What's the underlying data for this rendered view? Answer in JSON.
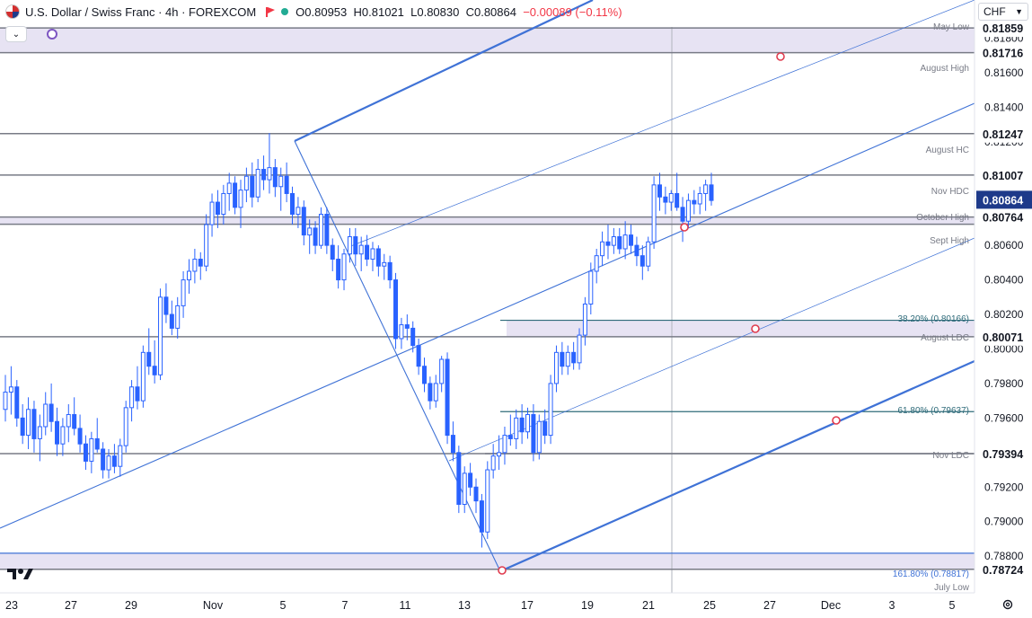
{
  "header": {
    "symbol": "U.S. Dollar / Swiss Franc · 4h · FOREXCOM",
    "ohlc": {
      "o": "O0.80953",
      "h": "H0.81021",
      "l": "L0.80830",
      "c": "C0.80864",
      "change": "−0.00089 (−0.11%)"
    },
    "currency": "CHF",
    "colors": {
      "up": "#22ab94",
      "down": "#f23645"
    }
  },
  "icons": [
    "flag-icon",
    "status-dot-icon",
    "chevron-down-icon",
    "tradingview-logo-icon",
    "settings-icon"
  ],
  "colors": {
    "candle": "#2962ff",
    "level_line": "#787b86",
    "zone_fill": "#e7e3f3",
    "fib_line": "#2f6b7a",
    "channel": "#3f72d6",
    "marker": "#e03c4f",
    "last_price": "#1e3a8a"
  },
  "chart_data": {
    "type": "candlestick",
    "title": "U.S. Dollar / Swiss Franc · 4h · FOREXCOM",
    "ylim": [
      0.7865,
      0.82
    ],
    "y_ticks": [
      "0.81800",
      "0.81600",
      "0.81400",
      "0.81200",
      "0.81000",
      "0.80800",
      "0.80600",
      "0.80400",
      "0.80200",
      "0.80000",
      "0.79800",
      "0.79600",
      "0.79400",
      "0.79200",
      "0.79000",
      "0.78800"
    ],
    "x_ticks": [
      "23",
      "27",
      "29",
      "Nov",
      "5",
      "7",
      "11",
      "13",
      "17",
      "19",
      "21",
      "25",
      "27",
      "Dec",
      "3",
      "5"
    ],
    "levels": [
      {
        "label": "May Low",
        "value": "0.81859"
      },
      {
        "label": "August High",
        "value": "0.81716"
      },
      {
        "label": "August HC",
        "value": "0.81247"
      },
      {
        "label": "Nov HDC",
        "value": "0.81007"
      },
      {
        "label": "October High",
        "value": "0.80764"
      },
      {
        "label": "Sept High",
        "value": "0.80722"
      },
      {
        "label": "August LDC",
        "value": "0.80071"
      },
      {
        "label": "Nov LDC",
        "value": "0.79394"
      },
      {
        "label": "July Low",
        "value": "0.78724"
      }
    ],
    "fib_levels": [
      {
        "label": "38.20% (0.80166)",
        "value": 0.80166
      },
      {
        "label": "61.80% (0.79637)",
        "value": 0.79637
      },
      {
        "label": "161.80% (0.78817)",
        "value": 0.78817
      }
    ],
    "last_price": "0.80864",
    "series": [
      {
        "values": [
          [
            0.7965,
            0.7985,
            0.7958,
            0.7975
          ],
          [
            0.7975,
            0.799,
            0.7962,
            0.7978
          ],
          [
            0.7978,
            0.7982,
            0.7955,
            0.796
          ],
          [
            0.796,
            0.7968,
            0.7945,
            0.795
          ],
          [
            0.795,
            0.7972,
            0.7942,
            0.7965
          ],
          [
            0.7965,
            0.797,
            0.794,
            0.7948
          ],
          [
            0.7948,
            0.7962,
            0.7935,
            0.7955
          ],
          [
            0.7955,
            0.7975,
            0.795,
            0.7968
          ],
          [
            0.7968,
            0.798,
            0.7952,
            0.7958
          ],
          [
            0.7958,
            0.7966,
            0.7938,
            0.7945
          ],
          [
            0.7945,
            0.796,
            0.7938,
            0.7955
          ],
          [
            0.7955,
            0.7968,
            0.7946,
            0.7962
          ],
          [
            0.7962,
            0.7972,
            0.795,
            0.7954
          ],
          [
            0.7954,
            0.7962,
            0.794,
            0.7945
          ],
          [
            0.7945,
            0.795,
            0.793,
            0.7935
          ],
          [
            0.7935,
            0.7952,
            0.7928,
            0.7948
          ],
          [
            0.7948,
            0.796,
            0.794,
            0.7942
          ],
          [
            0.7942,
            0.7946,
            0.7925,
            0.793
          ],
          [
            0.793,
            0.7942,
            0.7925,
            0.7938
          ],
          [
            0.7938,
            0.7945,
            0.7928,
            0.7932
          ],
          [
            0.7932,
            0.7948,
            0.7926,
            0.7944
          ],
          [
            0.7944,
            0.797,
            0.794,
            0.7966
          ],
          [
            0.7966,
            0.7982,
            0.7958,
            0.7978
          ],
          [
            0.7978,
            0.799,
            0.7965,
            0.797
          ],
          [
            0.797,
            0.8002,
            0.7966,
            0.7998
          ],
          [
            0.7998,
            0.8012,
            0.7985,
            0.799
          ],
          [
            0.799,
            0.8005,
            0.798,
            0.7985
          ],
          [
            0.7985,
            0.8035,
            0.7982,
            0.803
          ],
          [
            0.803,
            0.8038,
            0.8015,
            0.802
          ],
          [
            0.802,
            0.8028,
            0.8008,
            0.8012
          ],
          [
            0.8012,
            0.803,
            0.8006,
            0.8025
          ],
          [
            0.8025,
            0.8045,
            0.8018,
            0.804
          ],
          [
            0.804,
            0.8052,
            0.8032,
            0.8045
          ],
          [
            0.8045,
            0.8058,
            0.8038,
            0.8052
          ],
          [
            0.8052,
            0.8056,
            0.804,
            0.8048
          ],
          [
            0.8048,
            0.8078,
            0.8045,
            0.8072
          ],
          [
            0.8072,
            0.809,
            0.8065,
            0.8085
          ],
          [
            0.8085,
            0.8092,
            0.807,
            0.8078
          ],
          [
            0.8078,
            0.8095,
            0.8072,
            0.809
          ],
          [
            0.809,
            0.8102,
            0.808,
            0.8096
          ],
          [
            0.8096,
            0.81,
            0.8078,
            0.8082
          ],
          [
            0.8082,
            0.8098,
            0.807,
            0.8092
          ],
          [
            0.8092,
            0.8105,
            0.8085,
            0.81
          ],
          [
            0.81,
            0.8108,
            0.8082,
            0.8088
          ],
          [
            0.8088,
            0.811,
            0.8085,
            0.8104
          ],
          [
            0.8104,
            0.8112,
            0.8092,
            0.8098
          ],
          [
            0.8098,
            0.8125,
            0.809,
            0.8105
          ],
          [
            0.8105,
            0.811,
            0.8088,
            0.8094
          ],
          [
            0.8094,
            0.8105,
            0.808,
            0.81
          ],
          [
            0.81,
            0.8108,
            0.8085,
            0.809
          ],
          [
            0.809,
            0.8094,
            0.8072,
            0.8078
          ],
          [
            0.8078,
            0.8088,
            0.807,
            0.8082
          ],
          [
            0.8082,
            0.8086,
            0.806,
            0.8066
          ],
          [
            0.8066,
            0.8075,
            0.8055,
            0.807
          ],
          [
            0.807,
            0.8074,
            0.8055,
            0.806
          ],
          [
            0.806,
            0.8082,
            0.8058,
            0.8078
          ],
          [
            0.8078,
            0.8082,
            0.8055,
            0.806
          ],
          [
            0.806,
            0.8064,
            0.8045,
            0.8052
          ],
          [
            0.8052,
            0.806,
            0.8035,
            0.804
          ],
          [
            0.804,
            0.8058,
            0.8034,
            0.8055
          ],
          [
            0.8055,
            0.807,
            0.805,
            0.8065
          ],
          [
            0.8065,
            0.807,
            0.8048,
            0.8055
          ],
          [
            0.8055,
            0.8065,
            0.8045,
            0.806
          ],
          [
            0.806,
            0.8066,
            0.8048,
            0.8052
          ],
          [
            0.8052,
            0.8062,
            0.8045,
            0.8058
          ],
          [
            0.8058,
            0.806,
            0.8042,
            0.8048
          ],
          [
            0.8048,
            0.8055,
            0.804,
            0.805
          ],
          [
            0.805,
            0.8054,
            0.8035,
            0.804
          ],
          [
            0.804,
            0.8044,
            0.8,
            0.8006
          ],
          [
            0.8006,
            0.8018,
            0.8,
            0.8014
          ],
          [
            0.8014,
            0.802,
            0.8005,
            0.8012
          ],
          [
            0.8012,
            0.8016,
            0.7998,
            0.8002
          ],
          [
            0.8002,
            0.8006,
            0.7985,
            0.799
          ],
          [
            0.799,
            0.7995,
            0.7975,
            0.798
          ],
          [
            0.798,
            0.7984,
            0.7965,
            0.797
          ],
          [
            0.797,
            0.7985,
            0.7966,
            0.798
          ],
          [
            0.798,
            0.7996,
            0.7975,
            0.7994
          ],
          [
            0.7994,
            0.7998,
            0.7945,
            0.795
          ],
          [
            0.795,
            0.7958,
            0.7935,
            0.794
          ],
          [
            0.794,
            0.7944,
            0.7905,
            0.791
          ],
          [
            0.791,
            0.7932,
            0.7905,
            0.7928
          ],
          [
            0.7928,
            0.7934,
            0.7915,
            0.792
          ],
          [
            0.792,
            0.7925,
            0.7905,
            0.7912
          ],
          [
            0.7912,
            0.7916,
            0.7885,
            0.7894
          ],
          [
            0.7894,
            0.7935,
            0.789,
            0.793
          ],
          [
            0.793,
            0.7945,
            0.7925,
            0.7938
          ],
          [
            0.7938,
            0.795,
            0.793,
            0.794
          ],
          [
            0.794,
            0.7955,
            0.7933,
            0.795
          ],
          [
            0.795,
            0.7962,
            0.7944,
            0.7948
          ],
          [
            0.7948,
            0.7965,
            0.7942,
            0.796
          ],
          [
            0.796,
            0.7968,
            0.7945,
            0.7952
          ],
          [
            0.7952,
            0.7966,
            0.7948,
            0.7962
          ],
          [
            0.7962,
            0.7968,
            0.7935,
            0.794
          ],
          [
            0.794,
            0.7962,
            0.7936,
            0.7958
          ],
          [
            0.7958,
            0.7965,
            0.7945,
            0.795
          ],
          [
            0.795,
            0.7985,
            0.7945,
            0.798
          ],
          [
            0.798,
            0.8002,
            0.7975,
            0.7998
          ],
          [
            0.7998,
            0.8004,
            0.7985,
            0.799
          ],
          [
            0.799,
            0.8002,
            0.7985,
            0.7998
          ],
          [
            0.7998,
            0.8004,
            0.7988,
            0.7992
          ],
          [
            0.7992,
            0.8012,
            0.7988,
            0.8008
          ],
          [
            0.8008,
            0.803,
            0.8002,
            0.8026
          ],
          [
            0.8026,
            0.805,
            0.802,
            0.8045
          ],
          [
            0.8045,
            0.8058,
            0.8038,
            0.8054
          ],
          [
            0.8054,
            0.8068,
            0.8048,
            0.8062
          ],
          [
            0.8062,
            0.8072,
            0.8052,
            0.806
          ],
          [
            0.806,
            0.807,
            0.8055,
            0.8065
          ],
          [
            0.8065,
            0.807,
            0.8055,
            0.8058
          ],
          [
            0.8058,
            0.8074,
            0.8052,
            0.8066
          ],
          [
            0.8066,
            0.8072,
            0.8055,
            0.806
          ],
          [
            0.806,
            0.8065,
            0.8048,
            0.8054
          ],
          [
            0.8054,
            0.806,
            0.804,
            0.8048
          ],
          [
            0.8048,
            0.8065,
            0.8045,
            0.8062
          ],
          [
            0.8062,
            0.81,
            0.8058,
            0.8095
          ],
          [
            0.8095,
            0.8102,
            0.808,
            0.8088
          ],
          [
            0.8088,
            0.8094,
            0.8078,
            0.8085
          ],
          [
            0.8085,
            0.8092,
            0.808,
            0.809
          ],
          [
            0.809,
            0.8102,
            0.808,
            0.8082
          ],
          [
            0.8082,
            0.8088,
            0.8062,
            0.8074
          ],
          [
            0.8074,
            0.809,
            0.807,
            0.8086
          ],
          [
            0.8086,
            0.8092,
            0.8078,
            0.8084
          ],
          [
            0.8084,
            0.8094,
            0.8078,
            0.809
          ],
          [
            0.809,
            0.8098,
            0.808,
            0.8095
          ],
          [
            0.8095,
            0.8102,
            0.8083,
            0.8086
          ]
        ]
      }
    ]
  }
}
